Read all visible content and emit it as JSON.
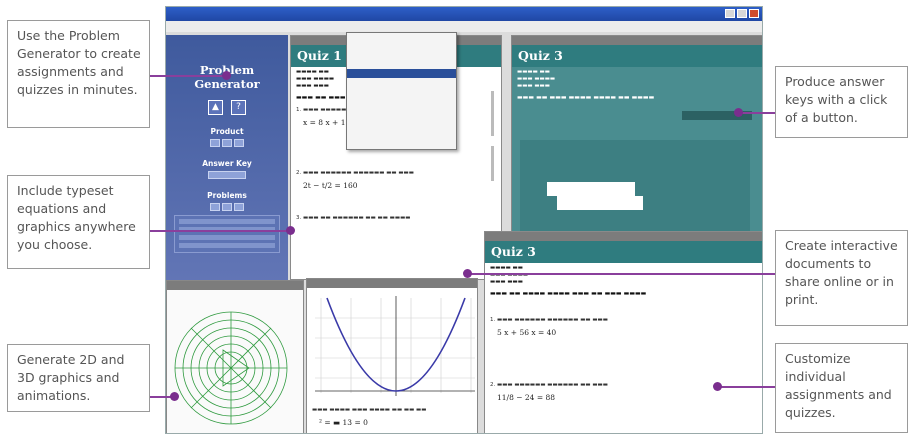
{
  "callouts": {
    "generator": "Use the Problem Generator to create assignments and quizzes in minutes.",
    "typeset": "Include typeset equations and graphics anywhere you choose.",
    "graphics": "Generate 2D and 3D graphics and animations.",
    "answer_keys": "Produce answer keys with a click of a button.",
    "interactive": "Create interactive documents to share online or in print.",
    "customize": "Customize individual assignments and quizzes."
  },
  "app": {
    "title": "",
    "menu": [],
    "problem_generator": {
      "title": "Problem Generator",
      "sections": [
        "Product",
        "Answer Key",
        "Problems"
      ]
    },
    "quiz_title_1": "Quiz 1",
    "quiz_title_2": "Quiz 3",
    "quiz_title_3": "Quiz 3"
  },
  "colors": {
    "accent": "#2f7c7f",
    "leader": "#8a3f9c",
    "panel": "#3f5a9d"
  }
}
